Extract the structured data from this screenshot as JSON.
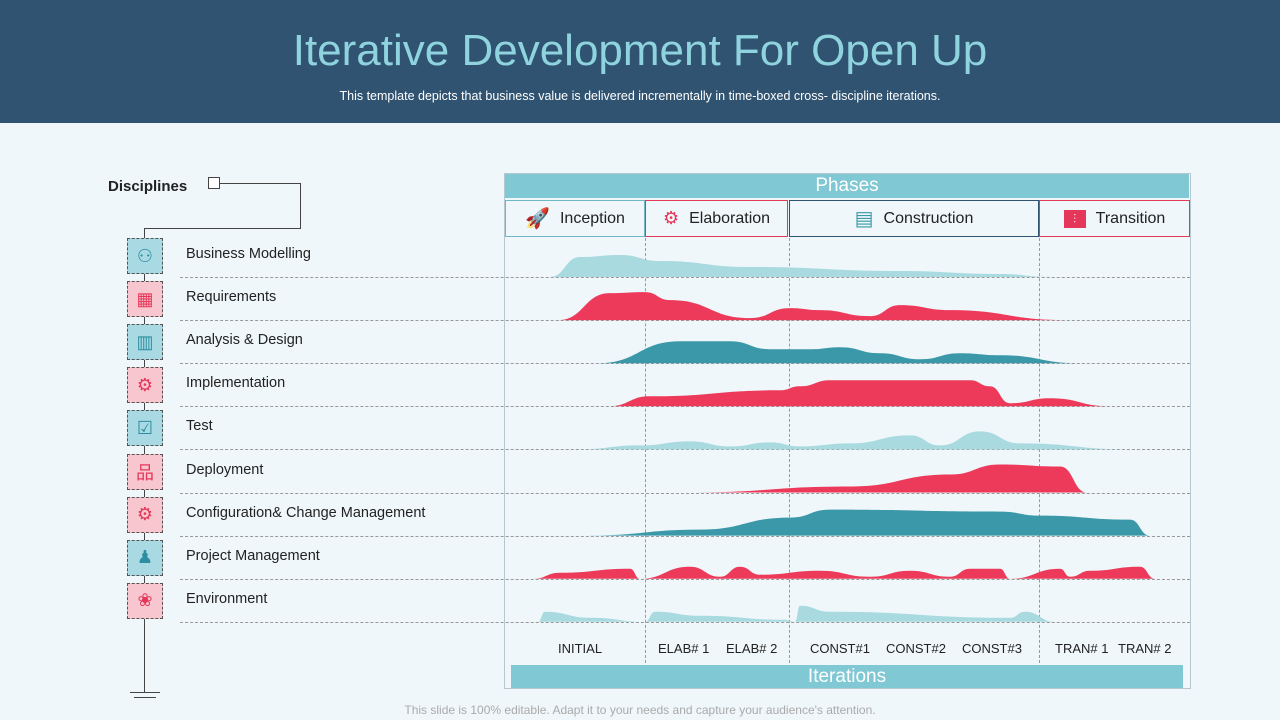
{
  "header": {
    "title": "Iterative Development For Open Up",
    "subtitle": "This template depicts that business value is delivered  incrementally in time-boxed cross- discipline iterations."
  },
  "disciplines": {
    "title": "Disciplines",
    "items": [
      {
        "label": "Business Modelling",
        "icon": "team-network-icon",
        "color": "teal"
      },
      {
        "label": "Requirements",
        "icon": "clipboard-list-icon",
        "color": "red"
      },
      {
        "label": "Analysis & Design",
        "icon": "analysis-chart-icon",
        "color": "teal"
      },
      {
        "label": "Implementation",
        "icon": "gear-icon",
        "color": "red"
      },
      {
        "label": "Test",
        "icon": "checklist-icon",
        "color": "teal"
      },
      {
        "label": "Deployment",
        "icon": "hierarchy-icon",
        "color": "red"
      },
      {
        "label": "Configuration& Change Management",
        "icon": "gear-hierarchy-icon",
        "color": "red"
      },
      {
        "label": "Project Management",
        "icon": "manager-network-icon",
        "color": "teal"
      },
      {
        "label": "Environment",
        "icon": "hands-globe-icon",
        "color": "red"
      }
    ]
  },
  "phases": {
    "title": "Phases",
    "items": [
      {
        "label": "Inception",
        "icon": "rocket-icon"
      },
      {
        "label": "Elaboration",
        "icon": "flowchart-icon"
      },
      {
        "label": "Construction",
        "icon": "document-gear-icon"
      },
      {
        "label": "Transition",
        "icon": "switch-icon"
      }
    ]
  },
  "iterations": {
    "title": "Iterations",
    "items": [
      "INITIAL",
      "ELAB# 1",
      "ELAB# 2",
      "CONST#1",
      "CONST#2",
      "CONST#3",
      "TRAN# 1",
      "TRAN# 2"
    ]
  },
  "colors": {
    "light": "#a8dae0",
    "red": "#ee3a5a",
    "dark": "#3a98a8",
    "header": "#2f5371"
  },
  "footer": "This slide is 100% editable. Adapt it to your needs and capture your audience's attention."
}
